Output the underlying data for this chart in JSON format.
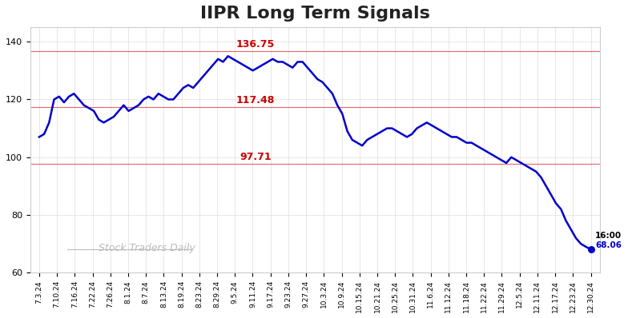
{
  "title": "IIPR Long Term Signals",
  "title_fontsize": 16,
  "background_color": "#ffffff",
  "line_color": "#0000cc",
  "line_width": 1.8,
  "ylim": [
    60,
    145
  ],
  "yticks": [
    60,
    80,
    100,
    120,
    140
  ],
  "hlines": [
    {
      "y": 136.75,
      "label": "136.75",
      "color": "#cc0000"
    },
    {
      "y": 117.48,
      "label": "117.48",
      "color": "#cc0000"
    },
    {
      "y": 97.71,
      "label": "97.71",
      "color": "#cc0000"
    }
  ],
  "watermark": "Stock Traders Daily",
  "watermark_color": "#bbbbbb",
  "annotation_time": "16:00",
  "annotation_price": "68.06",
  "annotation_color_time": "#000000",
  "annotation_color_price": "#0000cc",
  "x_labels": [
    "7.3.24",
    "7.10.24",
    "7.16.24",
    "7.22.24",
    "7.26.24",
    "8.1.24",
    "8.7.24",
    "8.13.24",
    "8.19.24",
    "8.23.24",
    "8.29.24",
    "9.5.24",
    "9.11.24",
    "9.17.24",
    "9.23.24",
    "9.27.24",
    "10.3.24",
    "10.9.24",
    "10.15.24",
    "10.21.24",
    "10.25.24",
    "10.31.24",
    "11.6.24",
    "11.12.24",
    "11.18.24",
    "11.22.24",
    "11.29.24",
    "12.5.24",
    "12.11.24",
    "12.17.24",
    "12.23.24",
    "12.30.24"
  ],
  "prices": [
    107,
    108,
    112,
    120,
    121,
    119,
    121,
    122,
    120,
    118,
    117,
    116,
    113,
    112,
    113,
    114,
    116,
    118,
    116,
    117,
    118,
    120,
    121,
    120,
    122,
    121,
    120,
    120,
    122,
    124,
    125,
    124,
    126,
    128,
    130,
    132,
    134,
    133,
    135,
    134,
    133,
    132,
    131,
    130,
    131,
    132,
    133,
    134,
    133,
    133,
    132,
    131,
    133,
    133,
    131,
    129,
    127,
    126,
    124,
    122,
    118,
    115,
    109,
    106,
    105,
    104,
    106,
    107,
    108,
    109,
    110,
    110,
    109,
    108,
    107,
    108,
    110,
    111,
    112,
    111,
    110,
    109,
    108,
    107,
    107,
    106,
    105,
    105,
    104,
    103,
    102,
    101,
    100,
    99,
    98,
    100,
    99,
    98,
    97,
    96,
    95,
    93,
    90,
    87,
    84,
    82,
    78,
    75,
    72,
    70,
    69,
    68.06
  ]
}
